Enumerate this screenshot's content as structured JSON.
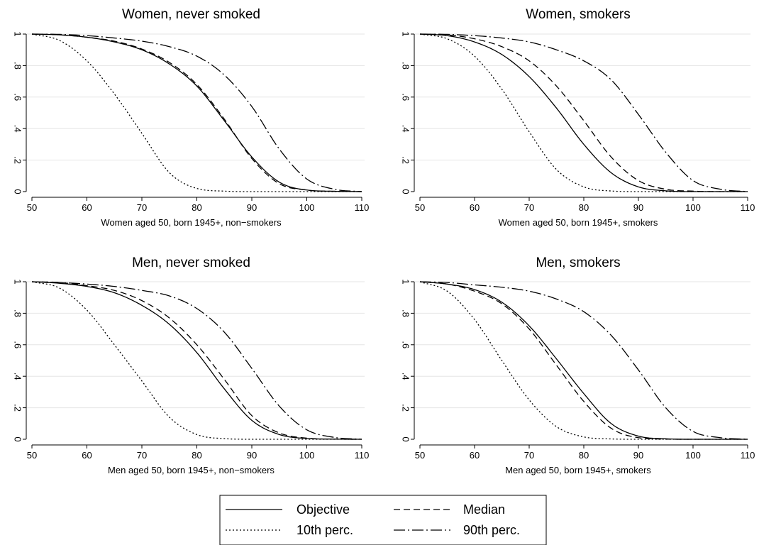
{
  "chart_data": [
    {
      "type": "line",
      "title": "Women, never smoked",
      "xlabel": "Women aged 50, born 1945+, non−smokers",
      "ylabel": "",
      "xlim": [
        50,
        110
      ],
      "ylim": [
        0,
        1
      ],
      "x_ticks": [
        50,
        60,
        70,
        80,
        90,
        100,
        110
      ],
      "y_ticks": [
        0,
        0.2,
        0.4,
        0.6,
        0.8,
        1
      ],
      "y_tick_labels": [
        "0",
        ".2",
        ".4",
        ".6",
        ".8",
        "1"
      ],
      "x": [
        50,
        55,
        60,
        65,
        70,
        75,
        80,
        85,
        90,
        95,
        100,
        105,
        110
      ],
      "series": [
        {
          "name": "Objective",
          "style": "solid",
          "values": [
            1.0,
            0.995,
            0.98,
            0.95,
            0.9,
            0.81,
            0.67,
            0.45,
            0.22,
            0.06,
            0.01,
            0.002,
            0.0
          ]
        },
        {
          "name": "Median",
          "style": "dash",
          "values": [
            1.0,
            0.995,
            0.98,
            0.955,
            0.905,
            0.82,
            0.68,
            0.46,
            0.21,
            0.05,
            0.01,
            0.002,
            0.0
          ]
        },
        {
          "name": "10th perc.",
          "style": "dot",
          "values": [
            1.0,
            0.96,
            0.83,
            0.62,
            0.37,
            0.12,
            0.02,
            0.003,
            0.0,
            0.0,
            0.0,
            0.0,
            0.0
          ]
        },
        {
          "name": "90th perc.",
          "style": "dashdot",
          "values": [
            1.0,
            0.998,
            0.99,
            0.975,
            0.955,
            0.92,
            0.86,
            0.74,
            0.54,
            0.27,
            0.08,
            0.015,
            0.0
          ]
        }
      ]
    },
    {
      "type": "line",
      "title": "Women, smokers",
      "xlabel": "Women aged 50, born 1945+, smokers",
      "ylabel": "",
      "xlim": [
        50,
        110
      ],
      "ylim": [
        0,
        1
      ],
      "x_ticks": [
        50,
        60,
        70,
        80,
        90,
        100,
        110
      ],
      "y_ticks": [
        0,
        0.2,
        0.4,
        0.6,
        0.8,
        1
      ],
      "y_tick_labels": [
        "0",
        ".2",
        ".4",
        ".6",
        ".8",
        "1"
      ],
      "x": [
        50,
        55,
        60,
        65,
        70,
        75,
        80,
        85,
        90,
        95,
        100,
        105,
        110
      ],
      "series": [
        {
          "name": "Objective",
          "style": "solid",
          "values": [
            1.0,
            0.99,
            0.95,
            0.87,
            0.73,
            0.53,
            0.3,
            0.12,
            0.03,
            0.005,
            0.0,
            0.0,
            0.0
          ]
        },
        {
          "name": "Median",
          "style": "dash",
          "values": [
            1.0,
            0.995,
            0.97,
            0.92,
            0.83,
            0.67,
            0.45,
            0.22,
            0.07,
            0.015,
            0.003,
            0.0,
            0.0
          ]
        },
        {
          "name": "10th perc.",
          "style": "dot",
          "values": [
            1.0,
            0.97,
            0.86,
            0.65,
            0.38,
            0.14,
            0.03,
            0.004,
            0.0,
            0.0,
            0.0,
            0.0,
            0.0
          ]
        },
        {
          "name": "90th perc.",
          "style": "dashdot",
          "values": [
            1.0,
            0.998,
            0.99,
            0.975,
            0.95,
            0.9,
            0.83,
            0.71,
            0.49,
            0.25,
            0.07,
            0.015,
            0.0
          ]
        }
      ]
    },
    {
      "type": "line",
      "title": "Men, never smoked",
      "xlabel": "Men aged 50, born 1945+, non−smokers",
      "ylabel": "",
      "xlim": [
        50,
        110
      ],
      "ylim": [
        0,
        1
      ],
      "x_ticks": [
        50,
        60,
        70,
        80,
        90,
        100,
        110
      ],
      "y_ticks": [
        0,
        0.2,
        0.4,
        0.6,
        0.8,
        1
      ],
      "y_tick_labels": [
        "0",
        ".2",
        ".4",
        ".6",
        ".8",
        "1"
      ],
      "x": [
        50,
        55,
        60,
        65,
        70,
        75,
        80,
        85,
        90,
        95,
        100,
        105,
        110
      ],
      "series": [
        {
          "name": "Objective",
          "style": "solid",
          "values": [
            1.0,
            0.99,
            0.97,
            0.93,
            0.85,
            0.73,
            0.55,
            0.32,
            0.12,
            0.03,
            0.005,
            0.001,
            0.0
          ]
        },
        {
          "name": "Median",
          "style": "dash",
          "values": [
            1.0,
            0.995,
            0.975,
            0.945,
            0.88,
            0.77,
            0.6,
            0.38,
            0.15,
            0.04,
            0.007,
            0.001,
            0.0
          ]
        },
        {
          "name": "10th perc.",
          "style": "dot",
          "values": [
            1.0,
            0.96,
            0.82,
            0.6,
            0.37,
            0.14,
            0.03,
            0.004,
            0.0,
            0.0,
            0.0,
            0.0,
            0.0
          ]
        },
        {
          "name": "90th perc.",
          "style": "dashdot",
          "values": [
            1.0,
            0.995,
            0.985,
            0.97,
            0.945,
            0.91,
            0.83,
            0.68,
            0.45,
            0.21,
            0.06,
            0.012,
            0.0
          ]
        }
      ]
    },
    {
      "type": "line",
      "title": "Men, smokers",
      "xlabel": "Men aged 50, born 1945+, smokers",
      "ylabel": "",
      "xlim": [
        50,
        110
      ],
      "ylim": [
        0,
        1
      ],
      "x_ticks": [
        50,
        60,
        70,
        80,
        90,
        100,
        110
      ],
      "y_ticks": [
        0,
        0.2,
        0.4,
        0.6,
        0.8,
        1
      ],
      "y_tick_labels": [
        "0",
        ".2",
        ".4",
        ".6",
        ".8",
        "1"
      ],
      "x": [
        50,
        55,
        60,
        65,
        70,
        75,
        80,
        85,
        90,
        95,
        100,
        105,
        110
      ],
      "series": [
        {
          "name": "Objective",
          "style": "solid",
          "values": [
            1.0,
            0.985,
            0.95,
            0.87,
            0.72,
            0.51,
            0.29,
            0.1,
            0.02,
            0.003,
            0.0,
            0.0,
            0.0
          ]
        },
        {
          "name": "Median",
          "style": "dash",
          "values": [
            1.0,
            0.985,
            0.94,
            0.86,
            0.7,
            0.47,
            0.24,
            0.07,
            0.01,
            0.001,
            0.0,
            0.0,
            0.0
          ]
        },
        {
          "name": "10th perc.",
          "style": "dot",
          "values": [
            1.0,
            0.94,
            0.76,
            0.5,
            0.25,
            0.08,
            0.015,
            0.002,
            0.0,
            0.0,
            0.0,
            0.0,
            0.0
          ]
        },
        {
          "name": "90th perc.",
          "style": "dashdot",
          "values": [
            1.0,
            0.995,
            0.98,
            0.965,
            0.94,
            0.89,
            0.81,
            0.66,
            0.44,
            0.2,
            0.05,
            0.01,
            0.0
          ]
        }
      ]
    }
  ],
  "legend": {
    "placement": "bottom-center",
    "items": [
      {
        "label": "Objective",
        "style": "solid"
      },
      {
        "label": "Median",
        "style": "dash"
      },
      {
        "label": "10th perc.",
        "style": "dot"
      },
      {
        "label": "90th perc.",
        "style": "dashdot"
      }
    ]
  }
}
